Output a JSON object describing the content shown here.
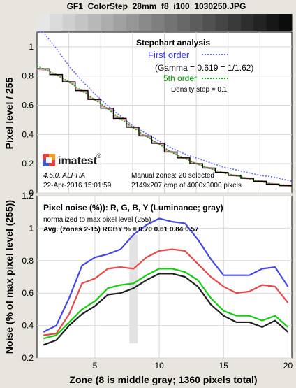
{
  "title": "GF1_ColorStep_28mm_f8_i100_1030250.JPG",
  "top_chart": {
    "ylabel": "Pixel level / 255",
    "yticks": [
      "0",
      "0.2",
      "0.4",
      "0.6",
      "0.8",
      "1"
    ],
    "heading": "Stepchart analysis",
    "legend_first": "First order",
    "gamma_text": "(Gamma = 0.619 = 1/1.62)",
    "legend_fifth": "5th order",
    "density_text": "Density step = 0.1",
    "version": "4.5.0. ALPHA",
    "date": "22-Apr-2016 15:01:59",
    "zones_text": "Manual zones:  20 selected",
    "crop_text": "2149x207 crop of 4000x3000 pixels",
    "logo_text": "imatest",
    "logo_mark": "®"
  },
  "bottom_chart": {
    "ylabel": "Noise (% of max pixel level (255))",
    "xlabel": "Zone  (8 is middle gray;  1360 pixels total)",
    "yticks": [
      "0.2",
      "0.4",
      "0.6",
      "0.8",
      "1",
      "1.2"
    ],
    "xticks": [
      "5",
      "10",
      "15",
      "20"
    ],
    "title": "Pixel noise (%)): R, G, B, Y (Luminance; gray)",
    "subtitle": "normalized to max pixel level (255)",
    "avg_text": "Avg. (zones 2-15) RGBY % = 0.70  0.61  0.84  0.57"
  },
  "colors": {
    "first_order": "#6a6aff",
    "fifth_order": "#00b000",
    "step_line": "#000000",
    "red": "#e84848",
    "green": "#10d010",
    "blue": "#4848e8",
    "luminance": "#202020"
  },
  "chart_data": [
    {
      "type": "line",
      "name": "stepchart",
      "ylim": [
        0,
        1.1
      ],
      "zones": 20,
      "levels": [
        0.85,
        0.81,
        0.76,
        0.7,
        0.64,
        0.58,
        0.51,
        0.45,
        0.39,
        0.34,
        0.28,
        0.24,
        0.2,
        0.17,
        0.14,
        0.12,
        0.1,
        0.08,
        0.06,
        0.05
      ],
      "first_order_fit": [
        1.12,
        0.99,
        0.87,
        0.77,
        0.68,
        0.6,
        0.53,
        0.46,
        0.41,
        0.36,
        0.31,
        0.27,
        0.24,
        0.21,
        0.18,
        0.16,
        0.14,
        0.12,
        0.11,
        0.09
      ]
    },
    {
      "type": "line",
      "name": "noise",
      "x": [
        1,
        2,
        3,
        4,
        5,
        6,
        7,
        8,
        9,
        10,
        11,
        12,
        13,
        14,
        15,
        16,
        17,
        18,
        19,
        20
      ],
      "xlim": [
        0.5,
        20.3
      ],
      "ylim": [
        0.2,
        1.2
      ],
      "series": [
        {
          "name": "R",
          "color": "#e84848",
          "values": [
            0.34,
            0.35,
            0.47,
            0.66,
            0.69,
            0.75,
            0.76,
            0.75,
            0.82,
            0.86,
            0.87,
            0.86,
            0.78,
            0.7,
            0.64,
            0.6,
            0.61,
            0.65,
            0.64,
            0.54
          ]
        },
        {
          "name": "G",
          "color": "#10d010",
          "values": [
            0.32,
            0.34,
            0.42,
            0.5,
            0.55,
            0.63,
            0.65,
            0.66,
            0.71,
            0.75,
            0.75,
            0.73,
            0.68,
            0.57,
            0.49,
            0.46,
            0.46,
            0.43,
            0.46,
            0.39
          ]
        },
        {
          "name": "B",
          "color": "#4848e8",
          "values": [
            0.36,
            0.4,
            0.57,
            0.77,
            0.82,
            0.84,
            0.87,
            0.96,
            1.02,
            1.06,
            1.04,
            1.03,
            0.93,
            0.81,
            0.71,
            0.71,
            0.71,
            0.75,
            0.76,
            0.64
          ]
        },
        {
          "name": "Y",
          "color": "#202020",
          "values": [
            0.28,
            0.31,
            0.4,
            0.47,
            0.52,
            0.59,
            0.6,
            0.63,
            0.68,
            0.72,
            0.72,
            0.7,
            0.64,
            0.53,
            0.46,
            0.42,
            0.42,
            0.39,
            0.43,
            0.36
          ]
        }
      ],
      "middle_gray_band": {
        "zone": 8,
        "range": [
          0.29,
          0.96
        ]
      }
    }
  ]
}
